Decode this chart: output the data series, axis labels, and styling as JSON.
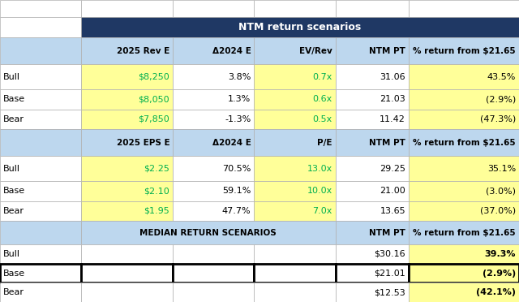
{
  "title": "NTM return scenarios",
  "title_bg": "#1f3864",
  "title_color": "#ffffff",
  "header_bg": "#bdd7ee",
  "yellow_bg": "#ffff99",
  "white_bg": "#ffffff",
  "light_blue_bg": "#dce6f1",
  "green_text": "#00b050",
  "black_text": "#000000",
  "grid_color": "#b0b0b0",
  "section1_headers": [
    "2025 Rev E",
    "Δ2024 E",
    "EV/Rev",
    "NTM PT",
    "% return from $21.65"
  ],
  "section1_rows": [
    [
      "Bull",
      "$8,250",
      "3.8%",
      "0.7x",
      "31.06",
      "43.5%"
    ],
    [
      "Base",
      "$8,050",
      "1.3%",
      "0.6x",
      "21.03",
      "(2.9%)"
    ],
    [
      "Bear",
      "$7,850",
      "-1.3%",
      "0.5x",
      "11.42",
      "(47.3%)"
    ]
  ],
  "section2_headers": [
    "2025 EPS E",
    "Δ2024 E",
    "P/E",
    "NTM PT",
    "% return from $21.65"
  ],
  "section2_rows": [
    [
      "Bull",
      "$2.25",
      "70.5%",
      "13.0x",
      "29.25",
      "35.1%"
    ],
    [
      "Base",
      "$2.10",
      "59.1%",
      "10.0x",
      "21.00",
      "(3.0%)"
    ],
    [
      "Bear",
      "$1.95",
      "47.7%",
      "7.0x",
      "13.65",
      "(37.0%)"
    ]
  ],
  "section3_rows": [
    [
      "Bull",
      "",
      "",
      "",
      "$30.16",
      "39.3%"
    ],
    [
      "Base",
      "",
      "",
      "",
      "$21.01",
      "(2.9%)"
    ],
    [
      "Bear",
      "",
      "",
      "",
      "$12.53",
      "(42.1%)"
    ]
  ],
  "figsize": [
    6.4,
    3.72
  ],
  "dpi": 100
}
